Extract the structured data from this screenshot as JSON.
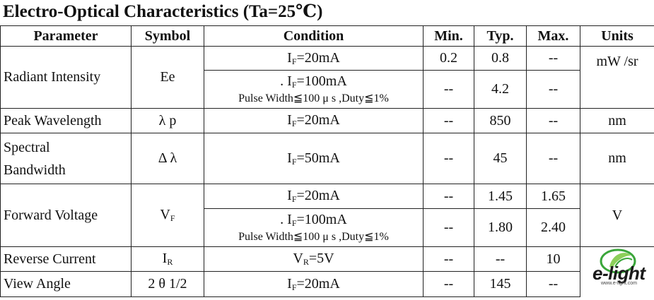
{
  "title": "Electro-Optical Characteristics (Ta=25℃)",
  "headers": {
    "parameter": "Parameter",
    "symbol": "Symbol",
    "condition": "Condition",
    "min": "Min.",
    "typ": "Typ.",
    "max": "Max.",
    "units": "Units"
  },
  "rows": {
    "radiant": {
      "parameter": "Radiant Intensity",
      "symbol": "Ee",
      "units": "mW /sr",
      "cond1": {
        "pre": "",
        "letter": "I",
        "sub": "F",
        "post": "=20mA"
      },
      "cond1_vals": {
        "min": "0.2",
        "typ": "0.8",
        "max": "--"
      },
      "cond2": {
        "pre": ". ",
        "letter": "I",
        "sub": "F",
        "post": "=100mA",
        "note": "Pulse Width≦100 μ s ,Duty≦1%"
      },
      "cond2_vals": {
        "min": "--",
        "typ": "4.2",
        "max": "--"
      }
    },
    "peak": {
      "parameter": "Peak Wavelength",
      "symbol": "λ p",
      "cond": {
        "letter": "I",
        "sub": "F",
        "post": "=20mA"
      },
      "min": "--",
      "typ": "850",
      "max": "--",
      "units": "nm"
    },
    "bandwidth": {
      "parameter_line1": "Spectral",
      "parameter_line2": "Bandwidth",
      "symbol": "Δ λ",
      "cond": {
        "letter": "I",
        "sub": "F",
        "post": "=50mA"
      },
      "min": "--",
      "typ": "45",
      "max": "--",
      "units": "nm"
    },
    "forward": {
      "parameter": "Forward Voltage",
      "symbol_letter": "V",
      "symbol_sub": "F",
      "units": "V",
      "cond1": {
        "letter": "I",
        "sub": "F",
        "post": "=20mA"
      },
      "cond1_vals": {
        "min": "--",
        "typ": "1.45",
        "max": "1.65"
      },
      "cond2": {
        "pre": ". ",
        "letter": "I",
        "sub": "F",
        "post": "=100mA",
        "note": "Pulse Width≦100 μ s ,Duty≦1%"
      },
      "cond2_vals": {
        "min": "--",
        "typ": "1.80",
        "max": "2.40"
      }
    },
    "reverse": {
      "parameter": "Reverse Current",
      "symbol_letter": "I",
      "symbol_sub": "R",
      "cond": {
        "letter": "V",
        "sub": "R",
        "post": "=5V"
      },
      "min": "--",
      "typ": "--",
      "max": "10",
      "units": ""
    },
    "view": {
      "parameter": "View Angle",
      "symbol": "2 θ 1/2",
      "cond": {
        "letter": "I",
        "sub": "F",
        "post": "=20mA"
      },
      "min": "--",
      "typ": "145",
      "max": "--"
    }
  },
  "logo": {
    "text": "e-light",
    "subtext": "www.e-light.com"
  },
  "colors": {
    "border": "#222222",
    "text": "#111111",
    "logo_green": "#3aa63a"
  }
}
